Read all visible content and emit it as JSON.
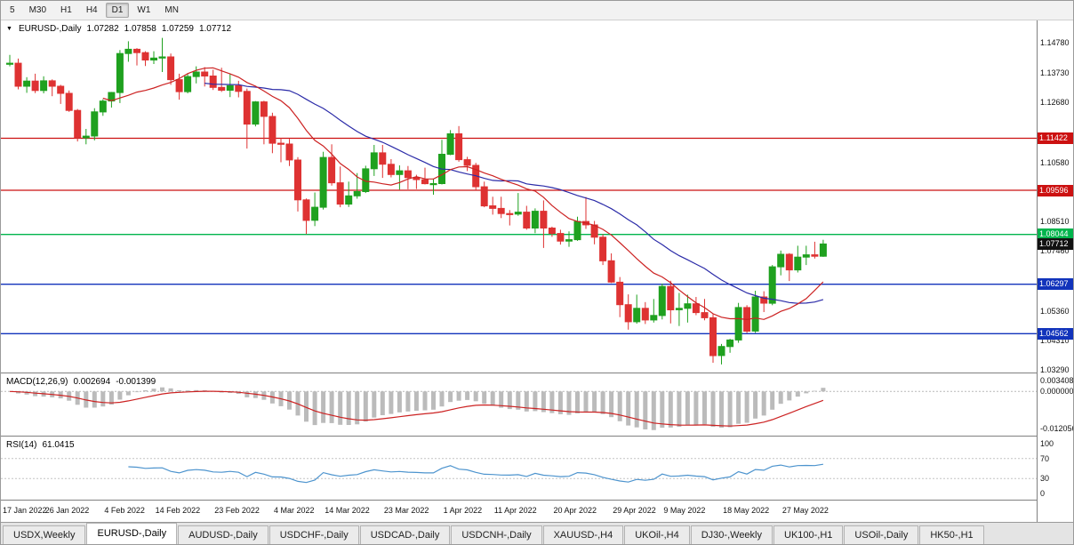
{
  "toolbar": {
    "periods": [
      "5",
      "M30",
      "H1",
      "H4",
      "D1",
      "W1",
      "MN"
    ],
    "active_period": "D1"
  },
  "chart_header": {
    "symbol": "EURUSD-,Daily",
    "open": "1.07282",
    "high": "1.07858",
    "low": "1.07259",
    "close": "1.07712"
  },
  "price_axis": {
    "labels": [
      "1.14780",
      "1.13730",
      "1.12680",
      "1.10580",
      "1.08510",
      "1.07460",
      "1.05360",
      "1.04310",
      "1.03290"
    ],
    "badges": [
      {
        "label": "1.11422",
        "value": 1.11422,
        "color": "#CC1111"
      },
      {
        "label": "1.09596",
        "value": 1.09596,
        "color": "#CC1111"
      },
      {
        "label": "1.08044",
        "value": 1.08044,
        "color": "#00B44C"
      },
      {
        "label": "1.07712",
        "value": 1.07712,
        "color": "#111111"
      },
      {
        "label": "1.06297",
        "value": 1.06297,
        "color": "#1133BB"
      },
      {
        "label": "1.04562",
        "value": 1.04562,
        "color": "#1133BB"
      }
    ]
  },
  "macd_panel": {
    "label": "MACD(12,26,9)",
    "macd_value": "0.002694",
    "signal_value": "-0.001399",
    "axis_labels": [
      {
        "label": "0.003408",
        "value": 0.003408
      },
      {
        "label": "0.000000",
        "value": 0
      },
      {
        "label": "-0.012056",
        "value": -0.012056
      }
    ]
  },
  "rsi_panel": {
    "label": "RSI(14)",
    "value": "61.0415",
    "axis_labels": [
      {
        "label": "100",
        "value": 100
      },
      {
        "label": "70",
        "value": 70
      },
      {
        "label": "30",
        "value": 30
      },
      {
        "label": "0",
        "value": 0
      }
    ],
    "guide_levels": [
      70,
      30
    ]
  },
  "tabs": [
    {
      "label": "USDX,Weekly",
      "active": false
    },
    {
      "label": "EURUSD-,Daily",
      "active": true
    },
    {
      "label": "AUDUSD-,Daily",
      "active": false
    },
    {
      "label": "USDCHF-,Daily",
      "active": false
    },
    {
      "label": "USDCAD-,Daily",
      "active": false
    },
    {
      "label": "USDCNH-,Daily",
      "active": false
    },
    {
      "label": "XAUUSD-,H4",
      "active": false
    },
    {
      "label": "UKOil-,H4",
      "active": false
    },
    {
      "label": "DJ30-,Weekly",
      "active": false
    },
    {
      "label": "UK100-,H1",
      "active": false
    },
    {
      "label": "USOil-,Daily",
      "active": false
    },
    {
      "label": "HK50-,H1",
      "active": false
    }
  ],
  "chart_data": {
    "type": "candlestick",
    "title": "EURUSD-,Daily",
    "price_range": [
      1.0329,
      1.1478
    ],
    "current_price": 1.07712,
    "colors": {
      "up": "#1FA11F",
      "down": "#DE3232",
      "ma_fast": "#CC2222",
      "ma_slow": "#2B2BA8",
      "macd_hist": "#BBBBBB",
      "macd_signal": "#CC2222",
      "rsi": "#4D94CE",
      "level_red": "#CC1111",
      "level_green": "#00B44C",
      "level_blue": "#1133BB"
    },
    "levels": [
      {
        "price": 1.11422,
        "color": "#CC1111"
      },
      {
        "price": 1.09596,
        "color": "#CC1111"
      },
      {
        "price": 1.08044,
        "color": "#00B44C"
      },
      {
        "price": 1.06297,
        "color": "#1133BB"
      },
      {
        "price": 1.04562,
        "color": "#1133BB"
      }
    ],
    "x_ticks": [
      {
        "index": 0,
        "label": "17 Jan 2022"
      },
      {
        "index": 7,
        "label": "26 Jan 2022"
      },
      {
        "index": 14,
        "label": "4 Feb 2022"
      },
      {
        "index": 20,
        "label": "14 Feb 2022"
      },
      {
        "index": 27,
        "label": "23 Feb 2022"
      },
      {
        "index": 34,
        "label": "4 Mar 2022"
      },
      {
        "index": 40,
        "label": "14 Mar 2022"
      },
      {
        "index": 47,
        "label": "23 Mar 2022"
      },
      {
        "index": 54,
        "label": "1 Apr 2022"
      },
      {
        "index": 60,
        "label": "11 Apr 2022"
      },
      {
        "index": 67,
        "label": "20 Apr 2022"
      },
      {
        "index": 74,
        "label": "29 Apr 2022"
      },
      {
        "index": 80,
        "label": "9 May 2022"
      },
      {
        "index": 87,
        "label": "18 May 2022"
      },
      {
        "index": 94,
        "label": "27 May 2022"
      }
    ],
    "ohlc": [
      [
        1.1405,
        1.1435,
        1.1395,
        1.1406
      ],
      [
        1.1406,
        1.1422,
        1.1314,
        1.1325
      ],
      [
        1.1325,
        1.1357,
        1.1302,
        1.1343
      ],
      [
        1.1343,
        1.1369,
        1.1301,
        1.131
      ],
      [
        1.131,
        1.136,
        1.13,
        1.1344
      ],
      [
        1.1344,
        1.1349,
        1.129,
        1.1325
      ],
      [
        1.1325,
        1.133,
        1.1263,
        1.13
      ],
      [
        1.13,
        1.131,
        1.1235,
        1.124
      ],
      [
        1.124,
        1.1245,
        1.1131,
        1.1144
      ],
      [
        1.1144,
        1.1175,
        1.1121,
        1.115
      ],
      [
        1.115,
        1.1248,
        1.1135,
        1.1235
      ],
      [
        1.1235,
        1.1279,
        1.1221,
        1.1273
      ],
      [
        1.1273,
        1.1305,
        1.125,
        1.1303
      ],
      [
        1.1303,
        1.1452,
        1.1266,
        1.144
      ],
      [
        1.144,
        1.1483,
        1.1411,
        1.1455
      ],
      [
        1.1455,
        1.1459,
        1.1398,
        1.1443
      ],
      [
        1.1443,
        1.1448,
        1.1396,
        1.1417
      ],
      [
        1.1417,
        1.1448,
        1.1403,
        1.1424
      ],
      [
        1.1424,
        1.1495,
        1.1375,
        1.1428
      ],
      [
        1.1428,
        1.144,
        1.133,
        1.1348
      ],
      [
        1.1348,
        1.1369,
        1.1278,
        1.1306
      ],
      [
        1.1306,
        1.1368,
        1.13,
        1.1359
      ],
      [
        1.1359,
        1.1395,
        1.1335,
        1.1375
      ],
      [
        1.1375,
        1.1392,
        1.1324,
        1.1361
      ],
      [
        1.1361,
        1.1383,
        1.1312,
        1.1321
      ],
      [
        1.1321,
        1.139,
        1.1305,
        1.1311
      ],
      [
        1.1311,
        1.1368,
        1.1287,
        1.1327
      ],
      [
        1.1327,
        1.1344,
        1.1286,
        1.1307
      ],
      [
        1.1307,
        1.1317,
        1.1106,
        1.1192
      ],
      [
        1.1192,
        1.1273,
        1.1184,
        1.127
      ],
      [
        1.127,
        1.1274,
        1.1121,
        1.1219
      ],
      [
        1.1219,
        1.1232,
        1.109,
        1.1125
      ],
      [
        1.1125,
        1.1143,
        1.1058,
        1.1122
      ],
      [
        1.1122,
        1.114,
        1.1045,
        1.1066
      ],
      [
        1.1066,
        1.1076,
        1.0885,
        1.0926
      ],
      [
        1.0926,
        1.0931,
        1.0806,
        1.0854
      ],
      [
        1.0854,
        1.0952,
        1.0834,
        1.09
      ],
      [
        1.09,
        1.1095,
        1.0892,
        1.1075
      ],
      [
        1.1075,
        1.1121,
        1.0976,
        1.0986
      ],
      [
        1.0986,
        1.1043,
        1.09,
        1.0911
      ],
      [
        1.0911,
        1.099,
        1.0901,
        1.094
      ],
      [
        1.094,
        1.102,
        1.093,
        1.0955
      ],
      [
        1.0955,
        1.1046,
        1.095,
        1.1035
      ],
      [
        1.1035,
        1.1119,
        1.101,
        1.1091
      ],
      [
        1.1091,
        1.1119,
        1.1003,
        1.1051
      ],
      [
        1.1051,
        1.1069,
        1.1005,
        1.1015
      ],
      [
        1.1015,
        1.1047,
        1.0962,
        1.1028
      ],
      [
        1.1028,
        1.1045,
        1.0963,
        1.1004
      ],
      [
        1.1004,
        1.1014,
        1.0964,
        1.0997
      ],
      [
        1.0997,
        1.1039,
        1.098,
        1.0983
      ],
      [
        1.0983,
        1.1,
        1.0944,
        1.0983
      ],
      [
        1.0983,
        1.1137,
        1.098,
        1.1086
      ],
      [
        1.1086,
        1.1171,
        1.1083,
        1.1158
      ],
      [
        1.1158,
        1.1185,
        1.106,
        1.1067
      ],
      [
        1.1067,
        1.1077,
        1.1027,
        1.1047
      ],
      [
        1.1047,
        1.1056,
        1.096,
        1.0972
      ],
      [
        1.0972,
        1.099,
        1.09,
        1.0905
      ],
      [
        1.0905,
        1.0937,
        1.0874,
        1.0896
      ],
      [
        1.0896,
        1.0937,
        1.0862,
        1.0878
      ],
      [
        1.0878,
        1.089,
        1.0836,
        1.0876
      ],
      [
        1.0876,
        1.095,
        1.087,
        1.0883
      ],
      [
        1.0883,
        1.0905,
        1.0821,
        1.0827
      ],
      [
        1.0827,
        1.0896,
        1.0809,
        1.0886
      ],
      [
        1.0886,
        1.0924,
        1.0757,
        1.0827
      ],
      [
        1.0827,
        1.0832,
        1.0796,
        1.0808
      ],
      [
        1.0808,
        1.0821,
        1.0769,
        1.0781
      ],
      [
        1.0781,
        1.0815,
        1.0761,
        1.0786
      ],
      [
        1.0786,
        1.0867,
        1.0782,
        1.085
      ],
      [
        1.085,
        1.0936,
        1.0824,
        1.0838
      ],
      [
        1.0838,
        1.0852,
        1.077,
        1.0795
      ],
      [
        1.0795,
        1.0805,
        1.0697,
        1.0712
      ],
      [
        1.0712,
        1.0738,
        1.0634,
        1.0637
      ],
      [
        1.0637,
        1.0655,
        1.0514,
        1.0558
      ],
      [
        1.0558,
        1.0594,
        1.047,
        1.0498
      ],
      [
        1.0498,
        1.0593,
        1.0491,
        1.0545
      ],
      [
        1.0545,
        1.0567,
        1.049,
        1.0504
      ],
      [
        1.0504,
        1.0578,
        1.0495,
        1.052
      ],
      [
        1.052,
        1.0632,
        1.0506,
        1.0622
      ],
      [
        1.0622,
        1.0642,
        1.0492,
        1.054
      ],
      [
        1.054,
        1.0599,
        1.0483,
        1.0545
      ],
      [
        1.0545,
        1.0593,
        1.0495,
        1.0561
      ],
      [
        1.0561,
        1.0585,
        1.0521,
        1.053
      ],
      [
        1.053,
        1.0578,
        1.0503,
        1.0512
      ],
      [
        1.0512,
        1.0525,
        1.0354,
        1.0379
      ],
      [
        1.0379,
        1.042,
        1.0348,
        1.0411
      ],
      [
        1.0411,
        1.0438,
        1.0389,
        1.0434
      ],
      [
        1.0434,
        1.0564,
        1.0424,
        1.0548
      ],
      [
        1.0548,
        1.0556,
        1.0458,
        1.0465
      ],
      [
        1.0465,
        1.0607,
        1.0459,
        1.0585
      ],
      [
        1.0585,
        1.0605,
        1.0532,
        1.0563
      ],
      [
        1.0563,
        1.0697,
        1.0556,
        1.0691
      ],
      [
        1.0691,
        1.0748,
        1.0661,
        1.0735
      ],
      [
        1.0735,
        1.0739,
        1.0641,
        1.068
      ],
      [
        1.068,
        1.0765,
        1.0671,
        1.0725
      ],
      [
        1.0725,
        1.0765,
        1.0697,
        1.0733
      ],
      [
        1.0733,
        1.0779,
        1.072,
        1.0728
      ],
      [
        1.07282,
        1.07858,
        1.07259,
        1.07712
      ]
    ]
  }
}
